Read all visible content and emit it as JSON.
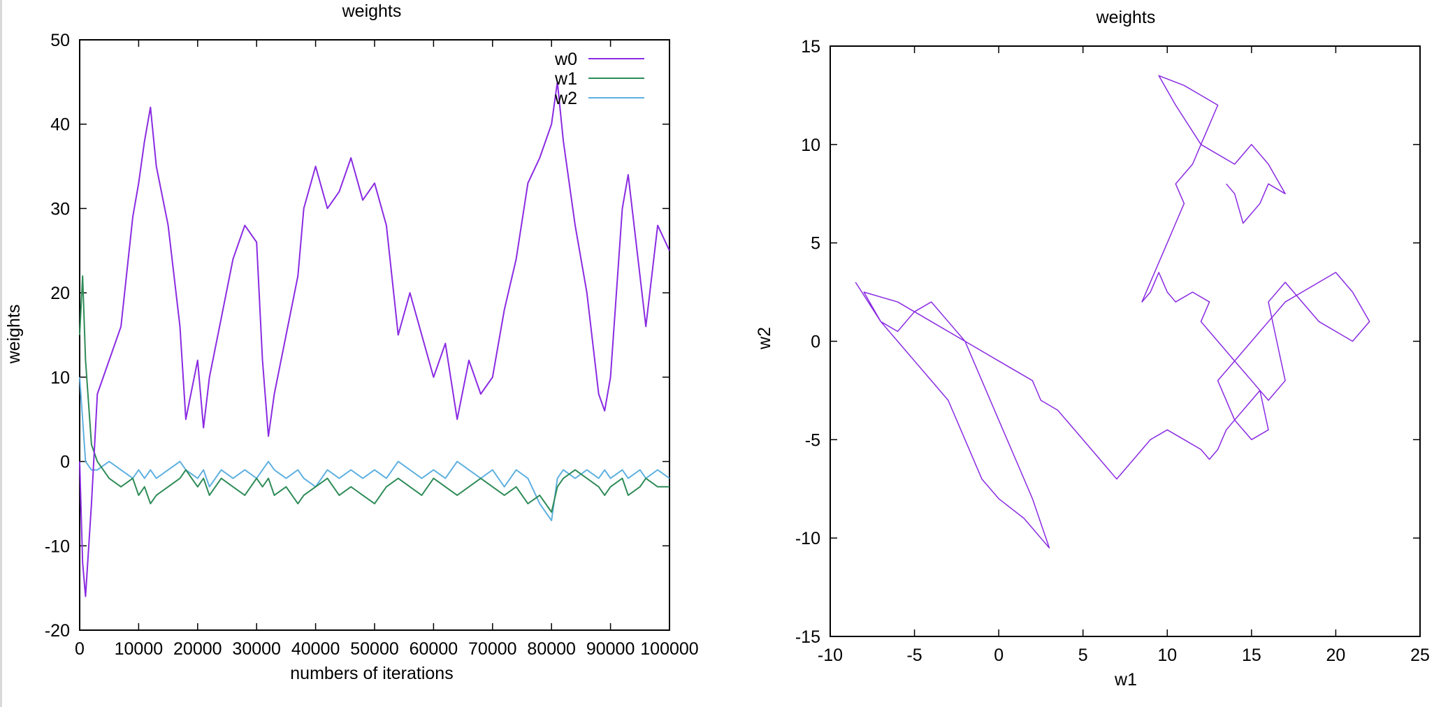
{
  "colors": {
    "w0": "#8a2be2",
    "w1": "#2e8b57",
    "w2": "#5fb0e0",
    "axis": "#000000"
  },
  "chart_data": [
    {
      "type": "line",
      "title": "weights",
      "xlabel": "numbers of iterations",
      "ylabel": "weights",
      "xlim": [
        0,
        100000
      ],
      "ylim": [
        -20,
        50
      ],
      "xticks": [
        0,
        10000,
        20000,
        30000,
        40000,
        50000,
        60000,
        70000,
        80000,
        90000,
        100000
      ],
      "xtick_labels": [
        "0",
        "10000",
        "20000",
        "30000",
        "40000",
        "50000",
        "60000",
        "70000",
        "80000",
        "90000",
        "100000"
      ],
      "yticks": [
        -20,
        -10,
        0,
        10,
        20,
        30,
        40,
        50
      ],
      "ytick_labels": [
        "-20",
        "-10",
        "0",
        "10",
        "20",
        "30",
        "40",
        "50"
      ],
      "grid": false,
      "legend_position": "top-right",
      "x": [
        0,
        500,
        1000,
        2000,
        3000,
        5000,
        7000,
        9000,
        10000,
        11000,
        12000,
        13000,
        15000,
        17000,
        18000,
        20000,
        21000,
        22000,
        24000,
        26000,
        28000,
        30000,
        31000,
        32000,
        33000,
        35000,
        37000,
        38000,
        40000,
        42000,
        44000,
        46000,
        48000,
        50000,
        52000,
        54000,
        56000,
        58000,
        60000,
        62000,
        64000,
        66000,
        68000,
        70000,
        72000,
        74000,
        76000,
        78000,
        80000,
        81000,
        82000,
        84000,
        86000,
        88000,
        89000,
        90000,
        92000,
        93000,
        95000,
        96000,
        98000,
        100000
      ],
      "series": [
        {
          "name": "w0",
          "values": [
            0,
            -12,
            -16,
            -5,
            8,
            12,
            16,
            29,
            33,
            38,
            42,
            35,
            28,
            16,
            5,
            12,
            4,
            10,
            17,
            24,
            28,
            26,
            12,
            3,
            8,
            15,
            22,
            30,
            35,
            30,
            32,
            36,
            31,
            33,
            28,
            15,
            20,
            15,
            10,
            14,
            5,
            12,
            8,
            10,
            18,
            24,
            33,
            36,
            40,
            45,
            38,
            28,
            20,
            8,
            6,
            10,
            30,
            34,
            22,
            16,
            28,
            25
          ]
        },
        {
          "name": "w1",
          "values": [
            15,
            22,
            12,
            2,
            0,
            -2,
            -3,
            -2,
            -4,
            -3,
            -5,
            -4,
            -3,
            -2,
            -1,
            -3,
            -2,
            -4,
            -2,
            -3,
            -4,
            -2,
            -3,
            -2,
            -4,
            -3,
            -5,
            -4,
            -3,
            -2,
            -4,
            -3,
            -4,
            -5,
            -3,
            -2,
            -3,
            -4,
            -2,
            -3,
            -4,
            -3,
            -2,
            -3,
            -4,
            -3,
            -5,
            -4,
            -6,
            -3,
            -2,
            -1,
            -2,
            -3,
            -4,
            -3,
            -2,
            -4,
            -3,
            -2,
            -3,
            -3
          ]
        },
        {
          "name": "w2",
          "values": [
            10,
            5,
            0,
            -1,
            -1,
            0,
            -1,
            -2,
            -1,
            -2,
            -1,
            -2,
            -1,
            0,
            -1,
            -2,
            -1,
            -3,
            -1,
            -2,
            -1,
            -2,
            -1,
            0,
            -1,
            -2,
            -1,
            -2,
            -3,
            -1,
            -2,
            -1,
            -2,
            -1,
            -2,
            0,
            -1,
            -2,
            -1,
            -2,
            0,
            -1,
            -2,
            -1,
            -3,
            -1,
            -2,
            -5,
            -7,
            -2,
            -1,
            -2,
            -1,
            -2,
            -1,
            -2,
            -1,
            -2,
            -1,
            -2,
            -1,
            -2
          ]
        }
      ]
    },
    {
      "type": "line",
      "title": "weights",
      "xlabel": "w1",
      "ylabel": "w2",
      "xlim": [
        -10,
        25
      ],
      "ylim": [
        -15,
        15
      ],
      "xticks": [
        -10,
        -5,
        0,
        5,
        10,
        15,
        20,
        25
      ],
      "xtick_labels": [
        "-10",
        "-5",
        "0",
        "5",
        "10",
        "15",
        "20",
        "25"
      ],
      "yticks": [
        -15,
        -10,
        -5,
        0,
        5,
        10,
        15
      ],
      "ytick_labels": [
        "-15",
        "-10",
        "-5",
        "0",
        "5",
        "10",
        "15"
      ],
      "grid": false,
      "series": [
        {
          "x": [
            -8.5,
            -7,
            -6,
            -5,
            -4,
            -3,
            -2,
            -1,
            0,
            1.5,
            2.5,
            3,
            2,
            1,
            0,
            -1,
            -2,
            -3,
            -4,
            -5,
            -6,
            -7,
            -8,
            -6,
            -4,
            -2,
            0,
            2,
            2.5,
            3.5,
            4.5,
            5.5,
            6.5,
            7,
            8,
            9,
            10,
            11,
            12,
            12.5,
            13,
            13.5,
            14,
            15,
            15.5,
            16,
            15,
            14,
            13,
            14,
            15,
            16,
            17,
            18,
            19,
            20,
            21,
            22,
            21,
            20,
            19,
            18,
            17,
            16,
            16.5,
            17,
            16,
            15,
            14,
            13,
            12,
            12.5,
            11.5,
            10.5,
            10,
            9.5,
            9,
            8.5,
            9.5,
            10,
            10.5,
            11,
            10.5,
            11.5,
            12,
            12.5,
            13,
            12,
            11,
            9.5,
            10.5,
            12,
            14,
            15,
            16,
            17,
            16,
            15.5,
            15,
            14.5,
            14,
            13.5
          ],
          "y": [
            3,
            1,
            0,
            -1,
            -2,
            -3,
            -5,
            -7,
            -8,
            -9,
            -10,
            -10.5,
            -8,
            -6,
            -4,
            -2,
            0,
            1,
            2,
            1.5,
            0.5,
            1,
            2.5,
            2,
            1,
            0,
            -1,
            -2,
            -3,
            -3.5,
            -4.5,
            -5.5,
            -6.5,
            -7,
            -6,
            -5,
            -4.5,
            -5,
            -5.5,
            -6,
            -5.5,
            -4.5,
            -4,
            -3,
            -2.5,
            -4.5,
            -5,
            -4,
            -2,
            -1,
            0,
            1,
            2,
            2.5,
            3,
            3.5,
            2.5,
            1,
            0,
            0.5,
            1,
            2,
            3,
            2,
            0,
            -2,
            -3,
            -2,
            -1,
            0,
            1,
            2,
            2.5,
            2,
            2.5,
            3.5,
            2.5,
            2,
            4,
            5,
            6,
            7,
            8,
            9,
            10,
            11,
            12,
            12.5,
            13,
            13.5,
            12,
            10,
            9,
            10,
            9,
            7.5,
            8,
            7,
            6.5,
            6,
            7.5,
            8
          ]
        }
      ]
    }
  ]
}
